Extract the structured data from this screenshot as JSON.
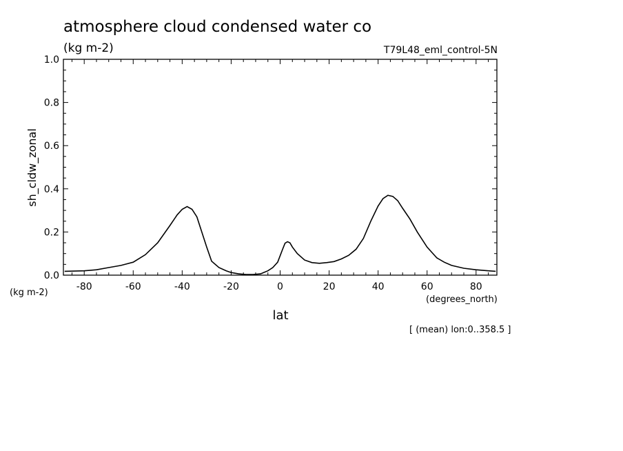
{
  "title": "atmosphere cloud condensed water co",
  "units_label": "(kg m-2)",
  "run_label": "T79L48_eml_control-5N",
  "y_units_label": "(kg m-2)",
  "x_units_label": "(degrees_north)",
  "footer_note": "[ (mean) lon:0..358.5 ]",
  "chart_data": {
    "type": "line",
    "xlabel": "lat",
    "ylabel": "sh_cldw_zonal",
    "xlim": [
      -88.5,
      88.5
    ],
    "ylim": [
      0.0,
      1.0
    ],
    "x_ticks": [
      -80,
      -60,
      -40,
      -20,
      0,
      20,
      40,
      60,
      80
    ],
    "x_tick_labels": [
      "-80",
      "-60",
      "-40",
      "-20",
      "0",
      "20",
      "40",
      "60",
      "80"
    ],
    "y_ticks": [
      0.0,
      0.2,
      0.4,
      0.6,
      0.8,
      1.0
    ],
    "y_tick_labels": [
      "0.0",
      "0.2",
      "0.4",
      "0.6",
      "0.8",
      "1.0"
    ],
    "grid": false,
    "series": [
      {
        "color": "#000000",
        "x": [
          -88,
          -80,
          -75,
          -70,
          -65,
          -60,
          -55,
          -50,
          -45,
          -42,
          -40,
          -38,
          -36,
          -34,
          -32,
          -30,
          -28,
          -25,
          -22,
          -20,
          -17,
          -14,
          -11,
          -8,
          -5,
          -3,
          -1,
          0,
          1,
          2,
          3,
          4,
          5,
          7,
          10,
          13,
          16,
          19,
          22,
          25,
          28,
          31,
          34,
          37,
          40,
          42,
          44,
          46,
          48,
          50,
          53,
          56,
          60,
          64,
          67,
          70,
          75,
          80,
          85,
          88
        ],
        "y": [
          0.018,
          0.02,
          0.025,
          0.035,
          0.045,
          0.06,
          0.095,
          0.15,
          0.23,
          0.28,
          0.305,
          0.318,
          0.305,
          0.27,
          0.2,
          0.13,
          0.065,
          0.035,
          0.02,
          0.012,
          0.006,
          0.003,
          0.003,
          0.006,
          0.02,
          0.035,
          0.06,
          0.09,
          0.12,
          0.148,
          0.155,
          0.15,
          0.13,
          0.1,
          0.07,
          0.058,
          0.055,
          0.058,
          0.063,
          0.075,
          0.092,
          0.12,
          0.17,
          0.25,
          0.32,
          0.355,
          0.37,
          0.365,
          0.345,
          0.31,
          0.26,
          0.2,
          0.13,
          0.08,
          0.06,
          0.045,
          0.032,
          0.025,
          0.02,
          0.018
        ]
      }
    ]
  }
}
